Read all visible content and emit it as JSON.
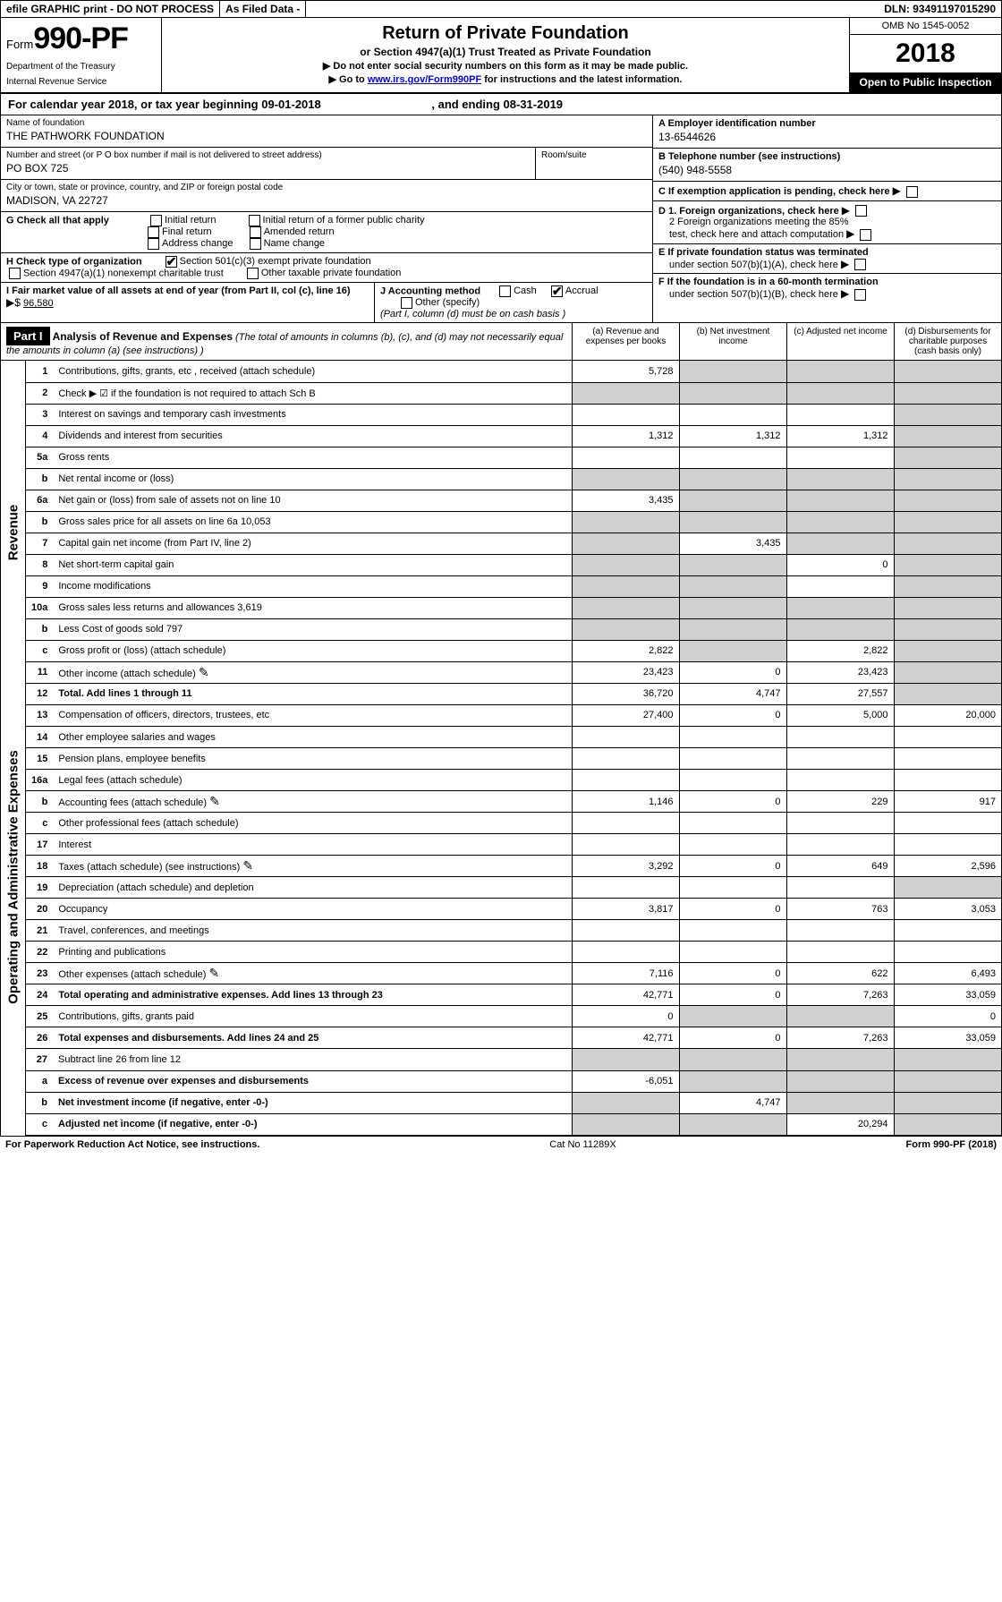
{
  "topbar": {
    "efile": "efile GRAPHIC print - DO NOT PROCESS",
    "asfiled": "As Filed Data -",
    "dln_label": "DLN:",
    "dln": "93491197015290"
  },
  "header": {
    "form_prefix": "Form",
    "form_no": "990-PF",
    "dept1": "Department of the Treasury",
    "dept2": "Internal Revenue Service",
    "title": "Return of Private Foundation",
    "subtitle": "or Section 4947(a)(1) Trust Treated as Private Foundation",
    "note1": "▶ Do not enter social security numbers on this form as it may be made public.",
    "note2_pre": "▶ Go to ",
    "note2_link": "www.irs.gov/Form990PF",
    "note2_post": " for instructions and the latest information.",
    "omb": "OMB No 1545-0052",
    "year": "2018",
    "open": "Open to Public Inspection"
  },
  "calyear": {
    "pre": "For calendar year 2018, or tax year beginning ",
    "begin": "09-01-2018",
    "mid": " , and ending ",
    "end": "08-31-2019"
  },
  "name": {
    "lbl": "Name of foundation",
    "val": "THE PATHWORK FOUNDATION"
  },
  "ein": {
    "lbl": "A Employer identification number",
    "val": "13-6544626"
  },
  "addr": {
    "lbl": "Number and street (or P O  box number if mail is not delivered to street address)",
    "val": "PO BOX 725",
    "room_lbl": "Room/suite"
  },
  "phone": {
    "lbl": "B Telephone number (see instructions)",
    "val": "(540) 948-5558"
  },
  "city": {
    "lbl": "City or town, state or province, country, and ZIP or foreign postal code",
    "val": "MADISON, VA  22727"
  },
  "c": "C If exemption application is pending, check here",
  "g": {
    "lbl": "G Check all that apply",
    "o1": "Initial return",
    "o2": "Initial return of a former public charity",
    "o3": "Final return",
    "o4": "Amended return",
    "o5": "Address change",
    "o6": "Name change"
  },
  "d": {
    "l1": "D 1. Foreign organizations, check here",
    "l2a": "2 Foreign organizations meeting the 85%",
    "l2b": "test, check here and attach computation"
  },
  "h": {
    "lbl": "H Check type of organization",
    "o1": "Section 501(c)(3) exempt private foundation",
    "o2": "Section 4947(a)(1) nonexempt charitable trust",
    "o3": "Other taxable private foundation"
  },
  "e": {
    "l1": "E  If private foundation status was terminated",
    "l2": "under section 507(b)(1)(A), check here"
  },
  "i": {
    "lbl": "I Fair market value of all assets at end of year (from Part II, col  (c), line 16)",
    "arrow": "▶$",
    "val": "96,580"
  },
  "j": {
    "lbl": "J Accounting method",
    "o1": "Cash",
    "o2": "Accrual",
    "o3": "Other (specify)",
    "note": "(Part I, column (d) must be on cash basis )"
  },
  "f": {
    "l1": "F  If the foundation is in a 60-month termination",
    "l2": "under section 507(b)(1)(B), check here"
  },
  "part1": {
    "hdr": "Part I",
    "title": "Analysis of Revenue and Expenses",
    "title_note": " (The total of amounts in columns (b), (c), and (d) may not necessarily equal the amounts in column (a) (see instructions) )",
    "col_a": "(a) Revenue and expenses per books",
    "col_b": "(b) Net investment income",
    "col_c": "(c) Adjusted net income",
    "col_d": "(d) Disbursements for charitable purposes (cash basis only)"
  },
  "side": {
    "rev": "Revenue",
    "exp": "Operating and Administrative Expenses"
  },
  "rows": [
    {
      "n": "1",
      "d": "Contributions, gifts, grants, etc , received (attach schedule)",
      "a": "5,728",
      "b": "",
      "c": "",
      "dd": "",
      "ag": false,
      "bg": true,
      "cg": true,
      "dg": true
    },
    {
      "n": "2",
      "d": "Check ▶ ☑ if the foundation is not required to attach Sch B",
      "a": "",
      "b": "",
      "c": "",
      "dd": "",
      "ag": true,
      "bg": true,
      "cg": true,
      "dg": true,
      "bold_not": true
    },
    {
      "n": "3",
      "d": "Interest on savings and temporary cash investments",
      "a": "",
      "b": "",
      "c": "",
      "dd": "",
      "ag": false,
      "bg": false,
      "cg": false,
      "dg": true
    },
    {
      "n": "4",
      "d": "Dividends and interest from securities",
      "a": "1,312",
      "b": "1,312",
      "c": "1,312",
      "dd": "",
      "ag": false,
      "bg": false,
      "cg": false,
      "dg": true
    },
    {
      "n": "5a",
      "d": "Gross rents",
      "a": "",
      "b": "",
      "c": "",
      "dd": "",
      "ag": false,
      "bg": false,
      "cg": false,
      "dg": true
    },
    {
      "n": "b",
      "d": "Net rental income or (loss)",
      "a": "",
      "b": "",
      "c": "",
      "dd": "",
      "ag": true,
      "bg": true,
      "cg": true,
      "dg": true
    },
    {
      "n": "6a",
      "d": "Net gain or (loss) from sale of assets not on line 10",
      "a": "3,435",
      "b": "",
      "c": "",
      "dd": "",
      "ag": false,
      "bg": true,
      "cg": true,
      "dg": true
    },
    {
      "n": "b",
      "d": "Gross sales price for all assets on line 6a           10,053",
      "a": "",
      "b": "",
      "c": "",
      "dd": "",
      "ag": true,
      "bg": true,
      "cg": true,
      "dg": true
    },
    {
      "n": "7",
      "d": "Capital gain net income (from Part IV, line 2)",
      "a": "",
      "b": "3,435",
      "c": "",
      "dd": "",
      "ag": true,
      "bg": false,
      "cg": true,
      "dg": true
    },
    {
      "n": "8",
      "d": "Net short-term capital gain",
      "a": "",
      "b": "",
      "c": "0",
      "dd": "",
      "ag": true,
      "bg": true,
      "cg": false,
      "dg": true
    },
    {
      "n": "9",
      "d": "Income modifications",
      "a": "",
      "b": "",
      "c": "",
      "dd": "",
      "ag": true,
      "bg": true,
      "cg": false,
      "dg": true
    },
    {
      "n": "10a",
      "d": "Gross sales less returns and allowances            3,619",
      "a": "",
      "b": "",
      "c": "",
      "dd": "",
      "ag": true,
      "bg": true,
      "cg": true,
      "dg": true
    },
    {
      "n": "b",
      "d": "Less  Cost of goods sold                797",
      "a": "",
      "b": "",
      "c": "",
      "dd": "",
      "ag": true,
      "bg": true,
      "cg": true,
      "dg": true
    },
    {
      "n": "c",
      "d": "Gross profit or (loss) (attach schedule)",
      "a": "2,822",
      "b": "",
      "c": "2,822",
      "dd": "",
      "ag": false,
      "bg": true,
      "cg": false,
      "dg": true
    },
    {
      "n": "11",
      "d": "Other income (attach schedule)",
      "a": "23,423",
      "b": "0",
      "c": "23,423",
      "dd": "",
      "ag": false,
      "bg": false,
      "cg": false,
      "dg": true,
      "pencil": true
    },
    {
      "n": "12",
      "d": "Total. Add lines 1 through 11",
      "a": "36,720",
      "b": "4,747",
      "c": "27,557",
      "dd": "",
      "ag": false,
      "bg": false,
      "cg": false,
      "dg": true,
      "total": true
    }
  ],
  "exp_rows": [
    {
      "n": "13",
      "d": "Compensation of officers, directors, trustees, etc",
      "a": "27,400",
      "b": "0",
      "c": "5,000",
      "dd": "20,000"
    },
    {
      "n": "14",
      "d": "Other employee salaries and wages",
      "a": "",
      "b": "",
      "c": "",
      "dd": ""
    },
    {
      "n": "15",
      "d": "Pension plans, employee benefits",
      "a": "",
      "b": "",
      "c": "",
      "dd": ""
    },
    {
      "n": "16a",
      "d": "Legal fees (attach schedule)",
      "a": "",
      "b": "",
      "c": "",
      "dd": ""
    },
    {
      "n": "b",
      "d": "Accounting fees (attach schedule)",
      "a": "1,146",
      "b": "0",
      "c": "229",
      "dd": "917",
      "pencil": true
    },
    {
      "n": "c",
      "d": "Other professional fees (attach schedule)",
      "a": "",
      "b": "",
      "c": "",
      "dd": ""
    },
    {
      "n": "17",
      "d": "Interest",
      "a": "",
      "b": "",
      "c": "",
      "dd": ""
    },
    {
      "n": "18",
      "d": "Taxes (attach schedule) (see instructions)",
      "a": "3,292",
      "b": "0",
      "c": "649",
      "dd": "2,596",
      "pencil": true
    },
    {
      "n": "19",
      "d": "Depreciation (attach schedule) and depletion",
      "a": "",
      "b": "",
      "c": "",
      "dd": "",
      "dg": true
    },
    {
      "n": "20",
      "d": "Occupancy",
      "a": "3,817",
      "b": "0",
      "c": "763",
      "dd": "3,053"
    },
    {
      "n": "21",
      "d": "Travel, conferences, and meetings",
      "a": "",
      "b": "",
      "c": "",
      "dd": ""
    },
    {
      "n": "22",
      "d": "Printing and publications",
      "a": "",
      "b": "",
      "c": "",
      "dd": ""
    },
    {
      "n": "23",
      "d": "Other expenses (attach schedule)",
      "a": "7,116",
      "b": "0",
      "c": "622",
      "dd": "6,493",
      "pencil": true
    },
    {
      "n": "24",
      "d": "Total operating and administrative expenses. Add lines 13 through 23",
      "a": "42,771",
      "b": "0",
      "c": "7,263",
      "dd": "33,059",
      "total": true
    },
    {
      "n": "25",
      "d": "Contributions, gifts, grants paid",
      "a": "0",
      "b": "",
      "c": "",
      "dd": "0",
      "bg": true,
      "cg": true
    },
    {
      "n": "26",
      "d": "Total expenses and disbursements. Add lines 24 and 25",
      "a": "42,771",
      "b": "0",
      "c": "7,263",
      "dd": "33,059",
      "total": true
    }
  ],
  "final_rows": [
    {
      "n": "27",
      "d": "Subtract line 26 from line 12",
      "a": "",
      "b": "",
      "c": "",
      "dd": "",
      "ag": true,
      "bg": true,
      "cg": true,
      "dg": true
    },
    {
      "n": "a",
      "d": "Excess of revenue over expenses and disbursements",
      "a": "-6,051",
      "b": "",
      "c": "",
      "dd": "",
      "bg": true,
      "cg": true,
      "dg": true,
      "total": true
    },
    {
      "n": "b",
      "d": "Net investment income (if negative, enter -0-)",
      "a": "",
      "b": "4,747",
      "c": "",
      "dd": "",
      "ag": true,
      "cg": true,
      "dg": true,
      "total": true
    },
    {
      "n": "c",
      "d": "Adjusted net income (if negative, enter -0-)",
      "a": "",
      "b": "",
      "c": "20,294",
      "dd": "",
      "ag": true,
      "bg": true,
      "dg": true,
      "total": true
    }
  ],
  "footer": {
    "left": "For Paperwork Reduction Act Notice, see instructions.",
    "mid": "Cat No 11289X",
    "right_pre": "Form ",
    "right_form": "990-PF",
    "right_post": " (2018)"
  }
}
